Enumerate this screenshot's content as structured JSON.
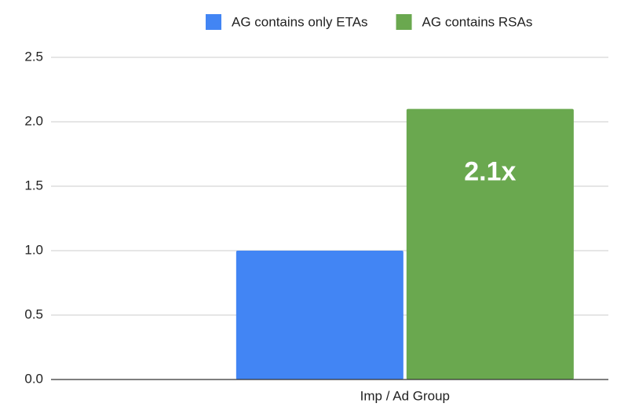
{
  "chart_data": {
    "type": "bar",
    "categories": [
      "Imp / Ad Group"
    ],
    "series": [
      {
        "name": "AG contains only ETAs",
        "color": "#4285f4",
        "values": [
          1.0
        ]
      },
      {
        "name": "AG contains RSAs",
        "color": "#6aa84f",
        "values": [
          2.1
        ],
        "value_labels": [
          "2.1x"
        ]
      }
    ],
    "ylim": [
      0,
      2.5
    ],
    "yticks": [
      {
        "value": 0,
        "label": "0.0"
      },
      0.5,
      {
        "value": 1,
        "label": "1.0"
      },
      1.5,
      {
        "value": 2,
        "label": "2.0"
      },
      2.5
    ],
    "grid": true,
    "legend": "top"
  }
}
